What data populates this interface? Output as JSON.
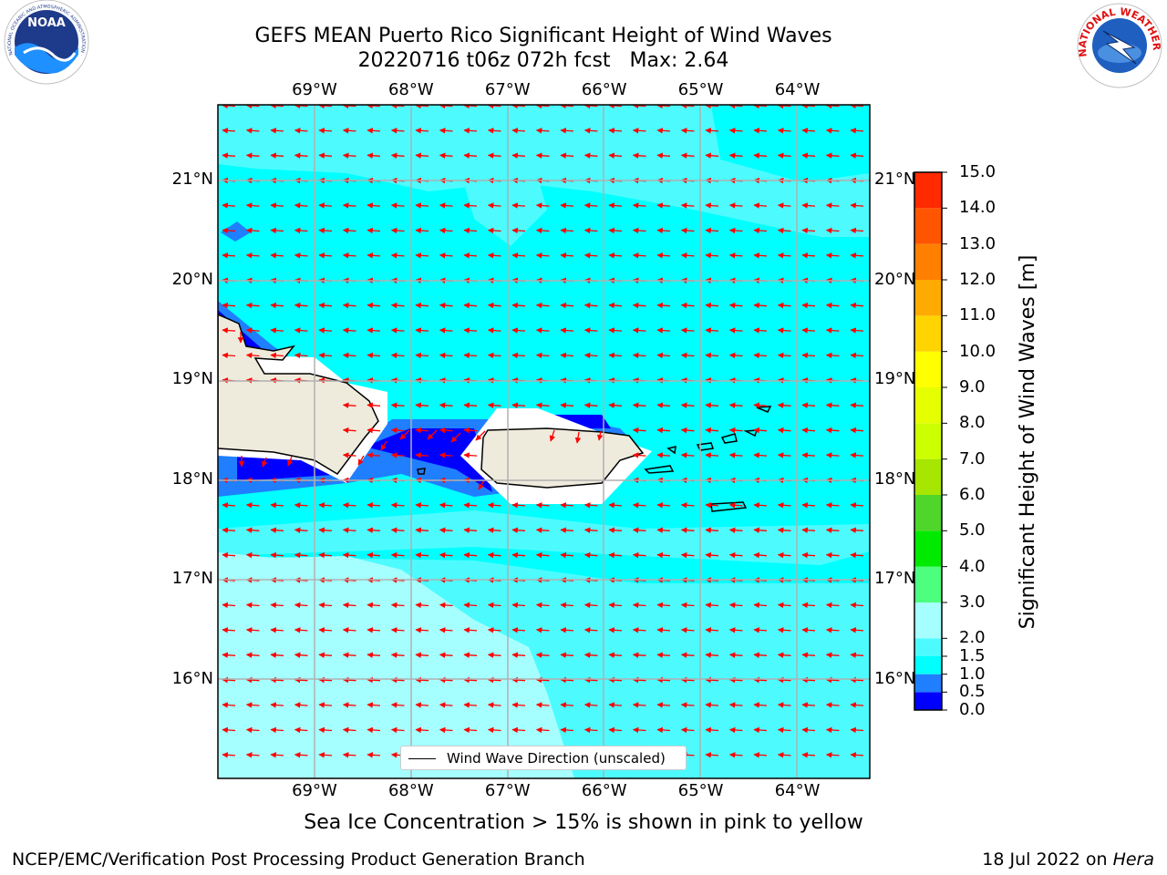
{
  "title": {
    "line1": "GEFS MEAN Puerto Rico Significant Height of Wind Waves",
    "line2_run": "20220716 t06z 072h fcst",
    "line2_max": "Max: 2.64"
  },
  "map": {
    "lon_labels": [
      "69°W",
      "68°W",
      "67°W",
      "66°W",
      "65°W",
      "64°W"
    ],
    "lat_labels": [
      "21°N",
      "20°N",
      "19°N",
      "18°N",
      "17°N",
      "16°N"
    ],
    "lon_range": [
      -70.0,
      -63.25
    ],
    "lat_range": [
      15.0,
      21.75
    ],
    "grid": true,
    "vector_direction": "westward (toward the west, slight north component)",
    "vector_color": "#ff0000",
    "legend_label": "Wind Wave Direction (unscaled)"
  },
  "colorbar": {
    "title": "Significant Height of Wind Waves [m]",
    "ticks": [
      "0.0",
      "0.5",
      "1.0",
      "1.5",
      "2.0",
      "3.0",
      "4.0",
      "5.0",
      "6.0",
      "7.0",
      "8.0",
      "9.0",
      "10.0",
      "11.0",
      "12.0",
      "13.0",
      "14.0",
      "15.0"
    ],
    "colors": [
      "#0000ff",
      "#1f7fff",
      "#00ffff",
      "#4dfbff",
      "#a6ffff",
      "#4dff7f",
      "#00ea00",
      "#4fd62a",
      "#a6e600",
      "#ccff00",
      "#e6ff00",
      "#ffff00",
      "#ffd400",
      "#ffaa00",
      "#ff7f00",
      "#ff5500",
      "#ff2a00"
    ]
  },
  "footer": {
    "sea_ice": "Sea Ice Concentration > 15% is shown in pink to yellow",
    "left": "NCEP/EMC/Verification Post Processing Product Generation Branch",
    "right_date": "18 Jul 2022 on ",
    "right_machine": "Hera"
  },
  "logos": {
    "left": "NOAA",
    "left_ring": "NATIONAL OCEANIC AND ATMOSPHERIC ADMINISTRATION · U.S. DEPARTMENT OF COMMERCE",
    "right_ring": "NATIONAL WEATHER SERVICE"
  }
}
